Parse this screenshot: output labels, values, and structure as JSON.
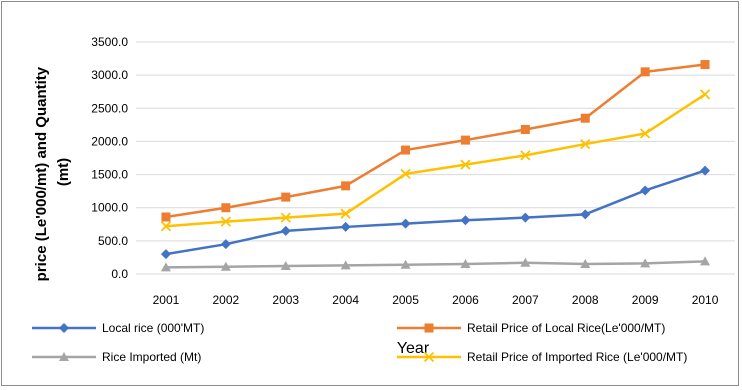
{
  "chart_data": {
    "type": "line",
    "title": "",
    "xlabel": "Year",
    "ylabel": "price (Le'000/mt) and Quantity (mt)",
    "ylabel_lines": [
      "price (Le'000/mt) and Quantity",
      "(mt)"
    ],
    "ylim": [
      0,
      3500
    ],
    "y_ticks": [
      "0.0",
      "500.0",
      "1000.0",
      "1500.0",
      "2000.0",
      "2500.0",
      "3000.0",
      "3500.0"
    ],
    "grid": true,
    "legend_position": "bottom",
    "categories": [
      "2001",
      "2002",
      "2003",
      "2004",
      "2005",
      "2006",
      "2007",
      "2008",
      "2009",
      "2010"
    ],
    "series": [
      {
        "name": "Local rice (000'MT)",
        "color": "#4472C4",
        "marker": "diamond",
        "values": [
          300,
          450,
          650,
          710,
          760,
          810,
          850,
          900,
          1260,
          1560
        ]
      },
      {
        "name": "Retail Price of Local Rice(Le'000/MT)",
        "color": "#ED7D31",
        "marker": "square",
        "values": [
          860,
          1000,
          1160,
          1330,
          1870,
          2020,
          2180,
          2350,
          3050,
          3160
        ]
      },
      {
        "name": "Rice Imported (Mt)",
        "color": "#A5A5A5",
        "marker": "triangle",
        "values": [
          100,
          110,
          120,
          130,
          140,
          150,
          170,
          150,
          160,
          190
        ]
      },
      {
        "name": "Retail Price of Imported Rice (Le'000/MT)",
        "color": "#FFC000",
        "marker": "x",
        "values": [
          720,
          790,
          850,
          910,
          1510,
          1650,
          1790,
          1960,
          2120,
          2710
        ]
      }
    ]
  }
}
